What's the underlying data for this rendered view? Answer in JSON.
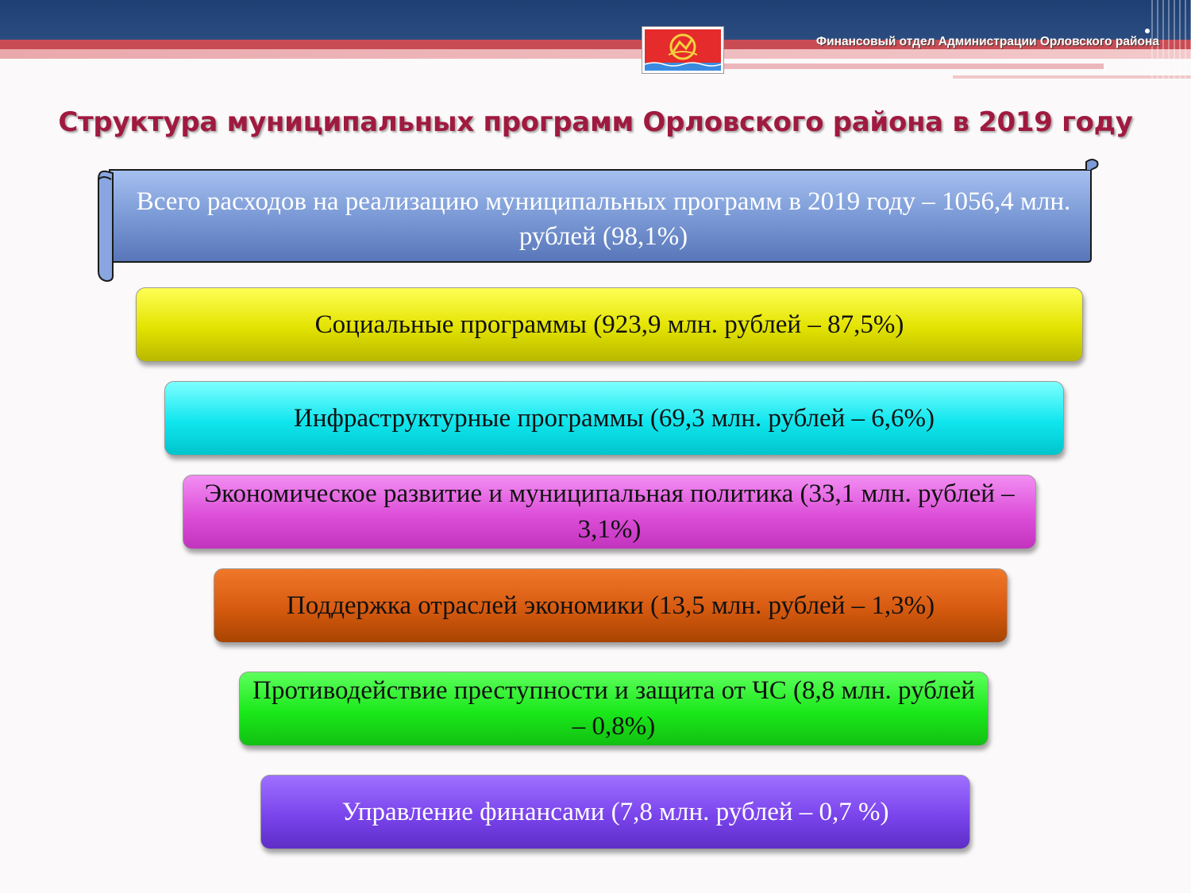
{
  "header": {
    "org_name": "Финансовый отдел Администрации Орловского района",
    "colors": {
      "navy": "#1e3f72",
      "red": "#c94c55",
      "pink": "#e9a8ac"
    }
  },
  "title": "Структура муниципальных программ Орловского района в 2019 году",
  "total": {
    "text": "Всего расходов на реализацию муниципальных программ в  2019 году – 1056,4 млн. рублей (98,1%)",
    "color": "#7b9ad6"
  },
  "programs": [
    {
      "label": "Социальные программы (923,9 млн. рублей – 87,5%)",
      "color": "#e2e200"
    },
    {
      "label": "Инфраструктурные программы (69,3 млн. рублей – 6,6%)",
      "color": "#10e6ee"
    },
    {
      "label": "Экономическое развитие и муниципальная политика (33,1 млн. рублей – 3,1%)",
      "color": "#dd4fd9"
    },
    {
      "label": "Поддержка отраслей экономики (13,5 млн. рублей – 1,3%)",
      "color": "#d65a10"
    },
    {
      "label": "Противодействие преступности и защита от ЧС (8,8 млн. рублей – 0,8%)",
      "color": "#1ae81a"
    },
    {
      "label": "Управление финансами (7,8 млн. рублей – 0,7 %)",
      "color": "#7a44ec"
    }
  ]
}
